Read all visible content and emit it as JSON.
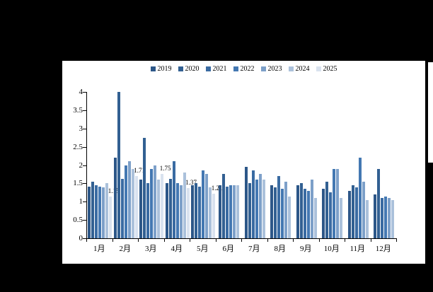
{
  "background": {
    "canvas_color": "#000000",
    "panel_color": "#ffffff"
  },
  "chart_data": {
    "type": "bar",
    "title": "",
    "xlabel": "",
    "ylabel": "",
    "ylim": [
      0,
      4
    ],
    "ytick_labels": [
      "4",
      "3.5",
      "3",
      "2.5",
      "2",
      "1.5",
      "1",
      "0.5",
      "0"
    ],
    "grid": false,
    "legend_position": "top",
    "categories": [
      "1月",
      "2月",
      "3月",
      "4月",
      "5月",
      "6月",
      "7月",
      "8月",
      "9月",
      "10月",
      "11月",
      "12月"
    ],
    "series": [
      {
        "name": "2019",
        "color": "#2d5788",
        "values": [
          1.42,
          2.2,
          1.6,
          1.5,
          1.45,
          1.45,
          1.95,
          1.45,
          1.45,
          1.35,
          1.3,
          1.2
        ]
      },
      {
        "name": "2020",
        "color": "#326092",
        "values": [
          1.55,
          4.0,
          2.75,
          1.62,
          1.5,
          1.75,
          1.5,
          1.4,
          1.5,
          1.55,
          1.45,
          1.9
        ]
      },
      {
        "name": "2021",
        "color": "#3a6ba2",
        "values": [
          1.45,
          1.62,
          1.5,
          2.1,
          1.42,
          1.42,
          1.85,
          1.7,
          1.35,
          1.25,
          1.4,
          1.1
        ]
      },
      {
        "name": "2022",
        "color": "#4478b2",
        "values": [
          1.42,
          2.0,
          1.9,
          1.5,
          1.85,
          1.45,
          1.6,
          1.35,
          1.3,
          1.9,
          2.2,
          1.15
        ]
      },
      {
        "name": "2023",
        "color": "#7da0c9",
        "values": [
          1.4,
          2.1,
          2.0,
          1.45,
          1.75,
          1.45,
          1.75,
          1.55,
          1.6,
          1.9,
          1.55,
          1.1
        ]
      },
      {
        "name": "2024",
        "color": "#abc1db",
        "values": [
          1.5,
          1.9,
          1.6,
          1.8,
          1.4,
          1.45,
          1.6,
          1.15,
          1.1,
          1.1,
          1.05,
          1.05
        ]
      },
      {
        "name": "2025",
        "color": "#d9e2ef",
        "values": [
          1.15,
          1.71,
          1.75,
          1.37,
          1.21,
          null,
          null,
          null,
          null,
          null,
          null,
          null
        ],
        "data_labels": [
          "1.15",
          "1.71",
          "1.75",
          "1.37",
          "1.21"
        ]
      }
    ]
  }
}
